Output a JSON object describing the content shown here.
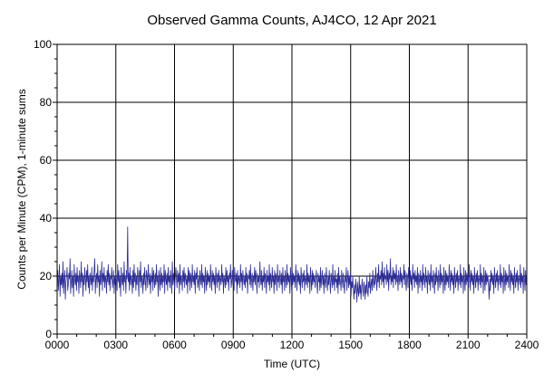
{
  "chart_data": {
    "type": "line",
    "title": "Observed Gamma Counts, AJ4CO, 12 Apr 2021",
    "xlabel": "Time (UTC)",
    "ylabel": "Counts per Minute (CPM), 1-minute sums",
    "xlim": [
      0,
      1440
    ],
    "ylim": [
      0,
      100
    ],
    "x_unit": "minutes since 0000 UTC",
    "x_ticks": [
      {
        "value": 0,
        "label": "0000"
      },
      {
        "value": 180,
        "label": "0300"
      },
      {
        "value": 360,
        "label": "0600"
      },
      {
        "value": 540,
        "label": "0900"
      },
      {
        "value": 720,
        "label": "1200"
      },
      {
        "value": 900,
        "label": "1500"
      },
      {
        "value": 1080,
        "label": "1800"
      },
      {
        "value": 1260,
        "label": "2100"
      },
      {
        "value": 1440,
        "label": "2400"
      }
    ],
    "y_ticks": [
      {
        "value": 0,
        "label": "0"
      },
      {
        "value": 20,
        "label": "20"
      },
      {
        "value": 40,
        "label": "40"
      },
      {
        "value": 60,
        "label": "60"
      },
      {
        "value": 80,
        "label": "80"
      },
      {
        "value": 100,
        "label": "100"
      }
    ],
    "grid": true,
    "series": [
      {
        "color": "#2b2b96",
        "values": [
          18,
          22,
          15,
          19,
          24,
          13,
          20,
          17,
          21,
          16,
          25,
          14,
          19,
          22,
          12,
          18,
          20,
          23,
          15,
          17,
          21,
          19,
          26,
          14,
          18,
          22,
          16,
          20,
          13,
          24,
          19,
          17,
          21,
          15,
          23,
          18,
          20,
          14,
          22,
          19,
          16,
          25,
          18,
          21,
          13,
          20,
          17,
          23,
          19,
          15,
          22,
          18,
          24,
          16,
          20,
          14,
          21,
          19,
          17,
          23,
          15,
          20,
          18,
          22,
          26,
          14,
          19,
          21,
          16,
          24,
          18,
          20,
          13,
          22,
          17,
          19,
          25,
          15,
          21,
          18,
          23,
          16,
          20,
          19,
          14,
          22,
          18,
          24,
          17,
          21,
          15,
          20,
          19,
          23,
          16,
          18,
          22,
          14,
          20,
          17,
          21,
          19,
          15,
          24,
          18,
          22,
          16,
          20,
          13,
          23,
          19,
          17,
          21,
          15,
          25,
          18,
          20,
          14,
          22,
          19,
          37,
          18,
          21,
          15,
          23,
          17,
          20,
          19,
          14,
          22,
          16,
          24,
          18,
          21,
          15,
          20,
          17,
          23,
          19,
          13,
          22,
          18,
          25,
          16,
          20,
          19,
          14,
          21,
          17,
          23,
          18,
          15,
          22,
          20,
          16,
          24,
          19,
          17,
          21,
          14,
          20,
          18,
          23,
          15,
          22,
          19,
          16,
          21,
          17,
          24,
          18,
          20,
          13,
          22,
          19,
          15,
          23,
          17,
          21,
          16,
          20,
          18,
          24,
          14,
          22,
          19,
          17,
          21,
          15,
          23,
          18,
          20,
          16,
          22,
          19,
          14,
          25,
          17,
          21,
          18,
          15,
          20,
          23,
          19,
          16,
          22,
          18,
          21,
          14,
          24,
          17,
          20,
          19,
          15,
          22,
          18,
          23,
          16,
          21,
          19,
          17,
          20,
          14,
          23,
          18,
          22,
          15,
          21,
          19,
          16,
          24,
          18,
          20,
          17,
          22,
          14,
          21,
          19,
          23,
          16,
          18,
          20,
          15,
          22,
          19,
          17,
          24,
          16,
          21,
          18,
          20,
          14,
          23,
          19,
          15,
          22,
          17,
          21,
          18,
          20,
          16,
          24,
          19,
          15,
          22,
          18,
          21,
          17,
          20,
          14,
          23,
          19,
          16,
          21,
          18,
          22,
          15,
          20,
          19,
          17,
          24,
          18,
          21,
          14,
          20,
          19,
          16,
          23,
          17,
          22,
          18,
          20,
          15,
          21,
          19,
          24,
          16,
          18,
          22,
          17,
          20,
          15,
          23,
          19,
          18,
          21,
          14,
          22,
          17,
          20,
          19,
          16,
          24,
          18,
          21,
          15,
          22,
          19,
          17,
          20,
          16,
          23,
          18,
          21,
          14,
          20,
          19,
          22,
          17,
          24,
          16,
          19,
          21,
          15,
          20,
          18,
          23,
          17,
          22,
          19,
          14,
          21,
          18,
          20,
          16,
          25,
          19,
          17,
          22,
          15,
          20,
          18,
          23,
          16,
          21,
          19,
          14,
          22,
          18,
          20,
          17,
          24,
          15,
          21,
          19,
          16,
          23,
          18,
          20,
          14,
          22,
          17,
          21,
          19,
          15,
          24,
          18,
          20,
          16,
          22,
          19,
          17,
          21,
          14,
          23,
          18,
          20,
          15,
          22,
          19,
          16,
          24,
          17,
          21,
          18,
          20,
          14,
          23,
          19,
          15,
          22,
          17,
          21,
          18,
          20,
          16,
          24,
          19,
          15,
          22,
          18,
          21,
          17,
          20,
          14,
          23,
          19,
          16,
          21,
          18,
          22,
          15,
          20,
          19,
          17,
          24,
          16,
          21,
          18,
          20,
          14,
          23,
          19,
          15,
          22,
          17,
          21,
          18,
          20,
          16,
          19,
          22,
          17,
          14,
          21,
          18,
          20,
          15,
          23,
          16,
          19,
          22,
          17,
          20,
          14,
          21,
          18,
          16,
          23,
          19,
          15,
          20,
          17,
          22,
          18,
          14,
          21,
          19,
          16,
          24,
          17,
          20,
          15,
          22,
          18,
          19,
          16,
          21,
          14,
          23,
          17,
          20,
          18,
          15,
          22,
          19,
          16,
          21,
          17,
          14,
          20,
          18,
          23,
          15,
          19,
          22,
          16,
          20,
          17,
          21,
          13,
          18,
          16,
          20,
          15,
          12,
          17,
          14,
          19,
          16,
          11,
          18,
          15,
          13,
          20,
          14,
          17,
          12,
          16,
          19,
          15,
          13,
          18,
          16,
          12,
          17,
          14,
          20,
          15,
          13,
          18,
          16,
          21,
          14,
          17,
          19,
          15,
          22,
          18,
          16,
          20,
          17,
          23,
          19,
          15,
          21,
          18,
          24,
          16,
          20,
          19,
          22,
          17,
          25,
          18,
          21,
          16,
          23,
          19,
          20,
          17,
          24,
          18,
          22,
          15,
          21,
          19,
          26,
          17,
          20,
          18,
          23,
          16,
          22,
          19,
          21,
          17,
          24,
          18,
          20,
          15,
          22,
          19,
          17,
          23,
          18,
          21,
          16,
          20,
          19,
          24,
          17,
          22,
          18,
          15,
          21,
          20,
          16,
          23,
          19,
          18,
          22,
          17,
          20,
          15,
          24,
          19,
          21,
          16,
          22,
          18,
          20,
          17,
          23,
          14,
          21,
          19,
          16,
          22,
          18,
          20,
          15,
          24,
          17,
          21,
          19,
          16,
          23,
          18,
          20,
          14,
          22,
          19,
          17,
          21,
          15,
          24,
          18,
          20,
          16,
          22,
          19,
          14,
          21,
          17,
          23,
          18,
          20,
          15,
          22,
          19,
          16,
          24,
          17,
          21,
          18,
          20,
          14,
          23,
          19,
          15,
          22,
          17,
          21,
          18,
          20,
          16,
          24,
          19,
          15,
          22,
          18,
          21,
          17,
          20,
          14,
          23,
          19,
          16,
          21,
          18,
          22,
          15,
          20,
          19,
          17,
          24,
          16,
          21,
          18,
          20,
          14,
          23,
          19,
          15,
          22,
          17,
          21,
          18,
          20,
          16,
          24,
          19,
          15,
          22,
          18,
          21,
          17,
          20,
          14,
          23,
          19,
          16,
          21,
          18,
          22,
          15,
          20,
          19,
          17,
          24,
          16,
          21,
          18,
          20,
          14,
          23,
          19,
          15,
          22,
          17,
          21,
          18,
          20,
          16,
          12,
          19,
          15,
          22,
          18,
          21,
          17,
          20,
          14,
          23,
          19,
          16,
          21,
          18,
          22,
          15,
          20,
          19,
          17,
          24,
          16,
          21,
          18,
          20,
          14,
          23,
          19,
          15,
          22,
          17,
          21,
          18,
          20,
          16,
          24,
          19,
          15,
          22,
          18,
          21,
          17,
          20,
          14,
          23,
          19,
          16,
          21,
          18,
          22,
          15,
          20,
          19,
          17,
          24,
          16,
          21,
          18,
          20,
          14,
          23,
          19,
          15,
          22,
          17,
          21
        ]
      }
    ]
  }
}
